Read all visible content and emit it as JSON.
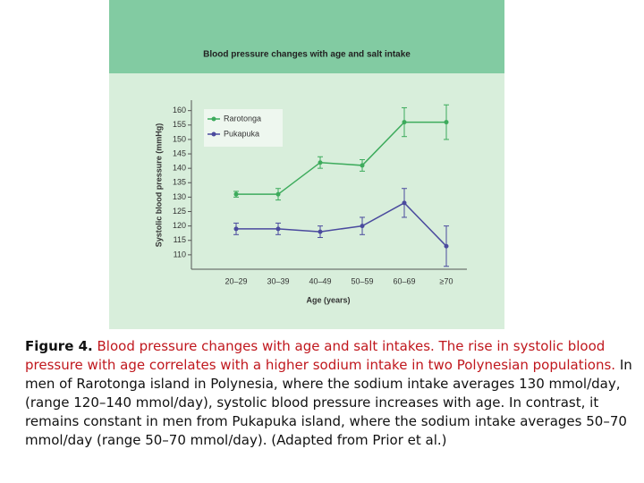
{
  "chart_data": {
    "type": "line",
    "title": "Blood pressure changes with age and salt intake",
    "xlabel": "Age (years)",
    "ylabel": "Systolic blood pressure (mmHg)",
    "categories": [
      "20–29",
      "30–39",
      "40–49",
      "50–59",
      "60–69",
      "≥70"
    ],
    "series": [
      {
        "name": "Rarotonga",
        "color": "#3dab5c",
        "values": [
          131,
          131,
          142,
          141,
          156,
          156
        ],
        "errors": [
          1,
          2,
          2,
          2,
          5,
          6
        ]
      },
      {
        "name": "Pukapuka",
        "color": "#4a4a9e",
        "values": [
          119,
          119,
          118,
          120,
          128,
          113
        ],
        "errors": [
          2,
          2,
          2,
          3,
          5,
          7
        ]
      }
    ],
    "ylim": [
      105,
      163
    ],
    "yticks": [
      110,
      115,
      120,
      125,
      130,
      135,
      140,
      145,
      150,
      155,
      160
    ],
    "grid": false,
    "legend": "upper left"
  },
  "caption": {
    "label": "Figure 4.",
    "highlight": "Blood pressure changes with age and salt intakes. The rise in systolic blood pressure with age correlates with a higher sodium intake in two Polynesian populations.",
    "body": "In men of Rarotonga island in Polynesia, where the sodium intake averages 130 mmol/day, (range 120–140 mmol/day), systolic blood pressure increases with age. In contrast, it remains constant in men from Pukapuka island, where the sodium intake averages 50–70 mmol/day (range 50–70 mmol/day). (Adapted from Prior et al.)"
  }
}
